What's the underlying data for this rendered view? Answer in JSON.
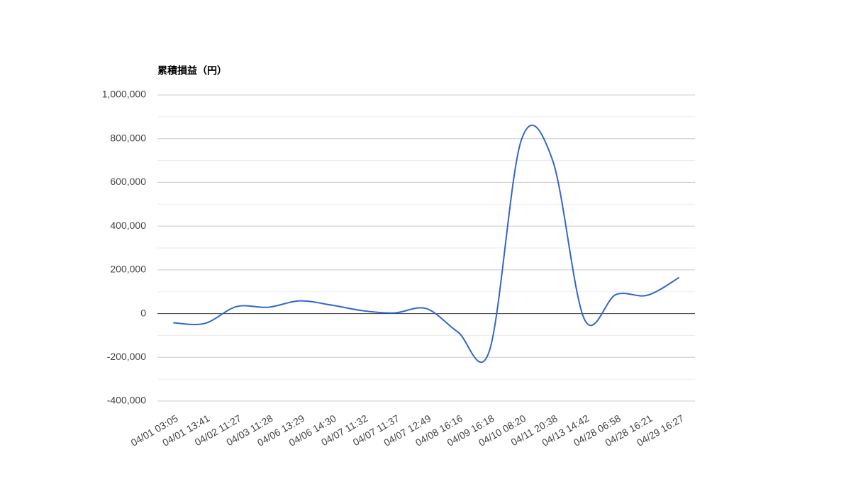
{
  "chart_data": {
    "type": "line",
    "title": "累積損益（円）",
    "categories": [
      "04/01 03:05",
      "04/01 13:41",
      "04/02 11:27",
      "04/03 11:28",
      "04/06 13:29",
      "04/06 14:30",
      "04/07 11:32",
      "04/07 11:37",
      "04/07 12:49",
      "04/08 16:16",
      "04/09 16:18",
      "04/10 08:20",
      "04/11 20:38",
      "04/13 14:42",
      "04/28 06:58",
      "04/28 16:21",
      "04/29 16:27"
    ],
    "values": [
      -42000,
      -45000,
      32000,
      29000,
      58000,
      39000,
      13000,
      3000,
      23000,
      -84000,
      -170000,
      790000,
      700000,
      -25000,
      87000,
      84000,
      165000
    ],
    "color": "#3366cc",
    "ylim": [
      -400000,
      1000000
    ],
    "yticks": [
      {
        "value": -400000,
        "label": "-400,000"
      },
      {
        "value": -200000,
        "label": "-200,000"
      },
      0,
      {
        "value": 200000,
        "label": "200,000"
      },
      {
        "value": 400000,
        "label": "400,000"
      },
      {
        "value": 600000,
        "label": "600,000"
      },
      {
        "value": 800000,
        "label": "800,000"
      },
      {
        "value": 1000000,
        "label": "1,000,000"
      }
    ],
    "grid": true,
    "smooth": true
  }
}
